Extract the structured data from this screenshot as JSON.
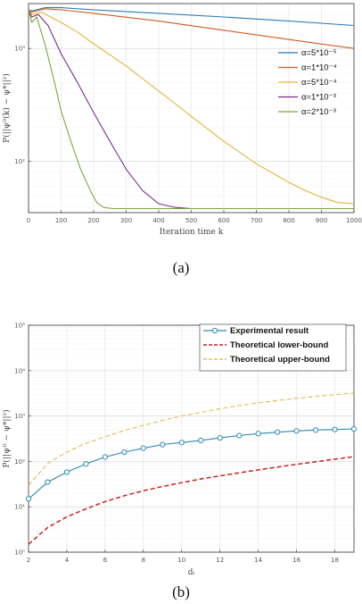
{
  "chart_data": [
    {
      "type": "line",
      "caption": "(a)",
      "xlabel": "Iteration  time  k",
      "ylabel": "P(||ψᴰ(k)  − ψ*||²)",
      "xlim": [
        0,
        1000
      ],
      "ylim": [
        35,
        2500
      ],
      "y_scale": "log",
      "x_ticks": [
        0,
        100,
        200,
        300,
        400,
        500,
        600,
        700,
        800,
        900,
        1000
      ],
      "y_ticks": [
        {
          "value": 100,
          "label": "10²"
        },
        {
          "value": 1000,
          "label": "10³"
        }
      ],
      "grid": true,
      "legend_position": "right",
      "series": [
        {
          "name": "α=5*10⁻⁵",
          "color": "#2a7ab8",
          "x": [
            0,
            10,
            50,
            100,
            200,
            400,
            600,
            800,
            1000
          ],
          "y": [
            2200,
            2150,
            2300,
            2300,
            2200,
            2050,
            1900,
            1750,
            1600
          ]
        },
        {
          "name": "α=1*10⁻⁴",
          "color": "#d35a1e",
          "x": [
            0,
            10,
            50,
            100,
            200,
            400,
            600,
            800,
            1000
          ],
          "y": [
            2200,
            2100,
            2250,
            2200,
            2050,
            1750,
            1450,
            1200,
            1000
          ]
        },
        {
          "name": "α=5*10⁻⁴",
          "color": "#e8b23a",
          "x": [
            0,
            10,
            40,
            100,
            150,
            200,
            300,
            400,
            500,
            600,
            700,
            800,
            850,
            900,
            950,
            1000
          ],
          "y": [
            2200,
            2000,
            2100,
            1700,
            1400,
            1100,
            700,
            420,
            250,
            150,
            95,
            65,
            55,
            48,
            43,
            42
          ]
        },
        {
          "name": "α=1*10⁻³",
          "color": "#7b2d8e",
          "x": [
            0,
            10,
            30,
            60,
            100,
            150,
            200,
            250,
            300,
            350,
            400,
            450,
            500,
            550,
            1000
          ],
          "y": [
            2200,
            1900,
            2000,
            1600,
            900,
            500,
            270,
            150,
            85,
            55,
            42,
            39,
            38,
            38,
            38
          ]
        },
        {
          "name": "α=2*10⁻³",
          "color": "#7aa83a",
          "x": [
            0,
            10,
            25,
            50,
            80,
            100,
            130,
            160,
            190,
            210,
            230,
            260,
            300,
            1000
          ],
          "y": [
            2200,
            1700,
            1900,
            1100,
            500,
            280,
            150,
            85,
            55,
            43,
            39,
            38,
            38,
            38
          ]
        }
      ]
    },
    {
      "type": "line",
      "caption": "(b)",
      "xlabel": "dᵢ",
      "ylabel": "P(||ψᴰ − ψ*||²)",
      "xlim": [
        2,
        19
      ],
      "ylim": [
        1,
        100000
      ],
      "y_scale": "log",
      "x_ticks": [
        2,
        4,
        6,
        8,
        10,
        12,
        14,
        16,
        18
      ],
      "y_ticks": [
        {
          "value": 1,
          "label": "10⁰"
        },
        {
          "value": 10,
          "label": "10¹"
        },
        {
          "value": 100,
          "label": "10²"
        },
        {
          "value": 1000,
          "label": "10³"
        },
        {
          "value": 10000,
          "label": "10⁴"
        },
        {
          "value": 100000,
          "label": "10⁵"
        }
      ],
      "grid": true,
      "legend_position": "top-right",
      "series": [
        {
          "name": "Experimental result",
          "color": "#2e8ab0",
          "style": "solid-circle",
          "x": [
            2,
            3,
            4,
            5,
            6,
            7,
            8,
            9,
            10,
            11,
            12,
            13,
            14,
            15,
            16,
            17,
            18,
            19
          ],
          "y": [
            15,
            35,
            58,
            88,
            125,
            160,
            195,
            235,
            260,
            290,
            330,
            370,
            410,
            440,
            470,
            490,
            505,
            520
          ]
        },
        {
          "name": "Theoretical lower-bound",
          "color": "#cc2020",
          "style": "dashed-thick",
          "x": [
            2,
            3,
            4,
            5,
            6,
            7,
            8,
            9,
            10,
            11,
            12,
            13,
            14,
            15,
            16,
            17,
            18,
            19
          ],
          "y": [
            1.5,
            3.5,
            6,
            9,
            13,
            17.5,
            22.5,
            28,
            34,
            41,
            48,
            56,
            65,
            75,
            86,
            98,
            112,
            127
          ]
        },
        {
          "name": "Theoretical upper-bound",
          "color": "#e8b23a",
          "style": "dashed",
          "x": [
            2,
            3,
            4,
            5,
            6,
            7,
            8,
            9,
            10,
            11,
            12,
            13,
            14,
            15,
            16,
            17,
            18,
            19
          ],
          "y": [
            30,
            90,
            160,
            250,
            350,
            480,
            620,
            800,
            1000,
            1200,
            1450,
            1700,
            1950,
            2200,
            2450,
            2700,
            2950,
            3200
          ]
        }
      ]
    }
  ]
}
